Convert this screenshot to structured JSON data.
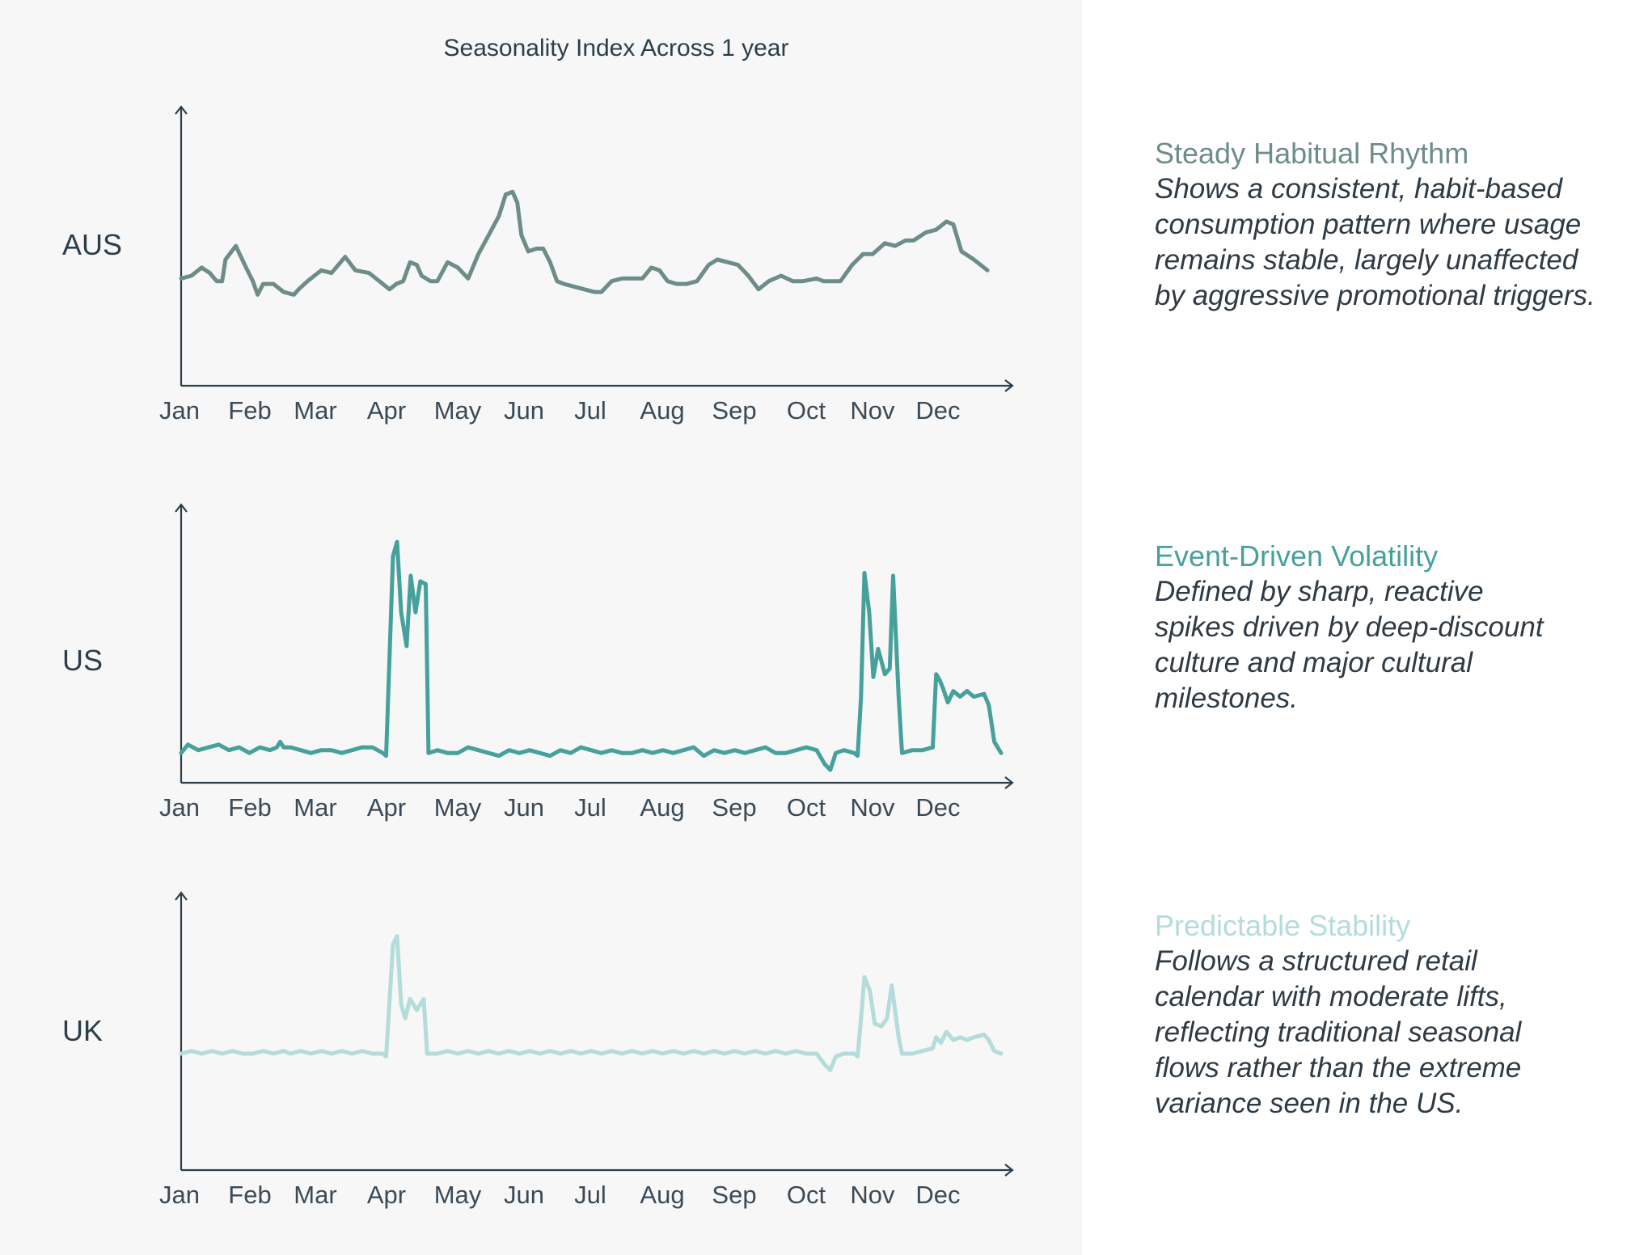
{
  "title": "Seasonality Index Across 1 year",
  "months": [
    "Jan",
    "Feb",
    "Mar",
    "Apr",
    "May",
    "Jun",
    "Jul",
    "Aug",
    "Sep",
    "Oct",
    "Nov",
    "Dec"
  ],
  "colors": {
    "aus": "#6d8d89",
    "us": "#46a09c",
    "uk": "#b3dcda",
    "axis": "#2c3e4a"
  },
  "chart_data": [
    {
      "type": "line",
      "label": "AUS",
      "xlabel": "",
      "ylabel": "",
      "x_range": [
        0,
        12
      ],
      "ylim": [
        0,
        100
      ],
      "points": [
        [
          0,
          39
        ],
        [
          0.15,
          40
        ],
        [
          0.3,
          43
        ],
        [
          0.42,
          41
        ],
        [
          0.52,
          38
        ],
        [
          0.6,
          38
        ],
        [
          0.65,
          46
        ],
        [
          0.8,
          51
        ],
        [
          0.95,
          43
        ],
        [
          1.05,
          38
        ],
        [
          1.12,
          33
        ],
        [
          1.2,
          37
        ],
        [
          1.35,
          37
        ],
        [
          1.5,
          34
        ],
        [
          1.65,
          33
        ],
        [
          1.72,
          35
        ],
        [
          1.85,
          38
        ],
        [
          2.05,
          42
        ],
        [
          2.2,
          41
        ],
        [
          2.3,
          44
        ],
        [
          2.4,
          47
        ],
        [
          2.55,
          42
        ],
        [
          2.75,
          41
        ],
        [
          2.9,
          38
        ],
        [
          3.05,
          35
        ],
        [
          3.15,
          37
        ],
        [
          3.25,
          38
        ],
        [
          3.35,
          45
        ],
        [
          3.45,
          44
        ],
        [
          3.52,
          40
        ],
        [
          3.65,
          38
        ],
        [
          3.75,
          38
        ],
        [
          3.9,
          45
        ],
        [
          4.05,
          43
        ],
        [
          4.2,
          39
        ],
        [
          4.35,
          48
        ],
        [
          4.5,
          55
        ],
        [
          4.65,
          62
        ],
        [
          4.75,
          70
        ],
        [
          4.85,
          71
        ],
        [
          4.92,
          67
        ],
        [
          4.98,
          55
        ],
        [
          5.08,
          49
        ],
        [
          5.2,
          50
        ],
        [
          5.3,
          50
        ],
        [
          5.4,
          45
        ],
        [
          5.5,
          38
        ],
        [
          5.6,
          37
        ],
        [
          5.75,
          36
        ],
        [
          5.9,
          35
        ],
        [
          6.05,
          34
        ],
        [
          6.15,
          34
        ],
        [
          6.3,
          38
        ],
        [
          6.45,
          39
        ],
        [
          6.6,
          39
        ],
        [
          6.75,
          39
        ],
        [
          6.88,
          43
        ],
        [
          7.0,
          42
        ],
        [
          7.12,
          38
        ],
        [
          7.25,
          37
        ],
        [
          7.4,
          37
        ],
        [
          7.55,
          38
        ],
        [
          7.72,
          44
        ],
        [
          7.85,
          46
        ],
        [
          8.0,
          45
        ],
        [
          8.15,
          44
        ],
        [
          8.3,
          40
        ],
        [
          8.45,
          35
        ],
        [
          8.6,
          38
        ],
        [
          8.78,
          40
        ],
        [
          8.95,
          38
        ],
        [
          9.1,
          38
        ],
        [
          9.3,
          39
        ],
        [
          9.4,
          38
        ],
        [
          9.5,
          38
        ],
        [
          9.65,
          38
        ],
        [
          9.82,
          44
        ],
        [
          9.98,
          48
        ],
        [
          10.12,
          48
        ],
        [
          10.3,
          52
        ],
        [
          10.45,
          51
        ],
        [
          10.6,
          53
        ],
        [
          10.72,
          53
        ],
        [
          10.9,
          56
        ],
        [
          11.05,
          57
        ],
        [
          11.2,
          60
        ],
        [
          11.3,
          59
        ],
        [
          11.42,
          49
        ],
        [
          11.6,
          46
        ],
        [
          11.8,
          42
        ]
      ]
    },
    {
      "type": "line",
      "label": "US",
      "xlabel": "",
      "ylabel": "",
      "x_range": [
        0,
        12
      ],
      "ylim": [
        0,
        100
      ],
      "points": [
        [
          0,
          10
        ],
        [
          0.1,
          13
        ],
        [
          0.25,
          11
        ],
        [
          0.4,
          12
        ],
        [
          0.55,
          13
        ],
        [
          0.7,
          11
        ],
        [
          0.85,
          12
        ],
        [
          1.0,
          10
        ],
        [
          1.15,
          12
        ],
        [
          1.3,
          11
        ],
        [
          1.4,
          12
        ],
        [
          1.45,
          14
        ],
        [
          1.5,
          12
        ],
        [
          1.6,
          12
        ],
        [
          1.75,
          11
        ],
        [
          1.9,
          10
        ],
        [
          2.05,
          11
        ],
        [
          2.2,
          11
        ],
        [
          2.35,
          10
        ],
        [
          2.5,
          11
        ],
        [
          2.65,
          12
        ],
        [
          2.8,
          12
        ],
        [
          2.95,
          10
        ],
        [
          3.0,
          9
        ],
        [
          3.1,
          80
        ],
        [
          3.16,
          85
        ],
        [
          3.22,
          60
        ],
        [
          3.3,
          48
        ],
        [
          3.36,
          73
        ],
        [
          3.43,
          60
        ],
        [
          3.5,
          71
        ],
        [
          3.58,
          70
        ],
        [
          3.62,
          10
        ],
        [
          3.75,
          11
        ],
        [
          3.9,
          10
        ],
        [
          4.05,
          10
        ],
        [
          4.2,
          12
        ],
        [
          4.35,
          11
        ],
        [
          4.5,
          10
        ],
        [
          4.65,
          9
        ],
        [
          4.8,
          11
        ],
        [
          4.95,
          10
        ],
        [
          5.1,
          11
        ],
        [
          5.25,
          10
        ],
        [
          5.4,
          9
        ],
        [
          5.55,
          11
        ],
        [
          5.7,
          10
        ],
        [
          5.85,
          12
        ],
        [
          6.0,
          11
        ],
        [
          6.15,
          10
        ],
        [
          6.3,
          11
        ],
        [
          6.45,
          10
        ],
        [
          6.6,
          10
        ],
        [
          6.75,
          11
        ],
        [
          6.9,
          10
        ],
        [
          7.05,
          11
        ],
        [
          7.2,
          10
        ],
        [
          7.35,
          11
        ],
        [
          7.5,
          12
        ],
        [
          7.65,
          9
        ],
        [
          7.8,
          11
        ],
        [
          7.95,
          10
        ],
        [
          8.1,
          11
        ],
        [
          8.25,
          10
        ],
        [
          8.4,
          11
        ],
        [
          8.55,
          12
        ],
        [
          8.7,
          10
        ],
        [
          8.85,
          10
        ],
        [
          9.0,
          11
        ],
        [
          9.15,
          12
        ],
        [
          9.3,
          11
        ],
        [
          9.42,
          6
        ],
        [
          9.5,
          4
        ],
        [
          9.58,
          10
        ],
        [
          9.7,
          11
        ],
        [
          9.85,
          10
        ],
        [
          9.9,
          9
        ],
        [
          9.95,
          30
        ],
        [
          10.0,
          74
        ],
        [
          10.07,
          60
        ],
        [
          10.13,
          37
        ],
        [
          10.2,
          47
        ],
        [
          10.3,
          38
        ],
        [
          10.37,
          40
        ],
        [
          10.42,
          73
        ],
        [
          10.5,
          30
        ],
        [
          10.55,
          10
        ],
        [
          10.7,
          11
        ],
        [
          10.85,
          11
        ],
        [
          11.0,
          12
        ],
        [
          11.05,
          38
        ],
        [
          11.1,
          36
        ],
        [
          11.15,
          33
        ],
        [
          11.22,
          28
        ],
        [
          11.3,
          32
        ],
        [
          11.4,
          30
        ],
        [
          11.5,
          32
        ],
        [
          11.6,
          30
        ],
        [
          11.75,
          31
        ],
        [
          11.82,
          27
        ],
        [
          11.9,
          14
        ],
        [
          12.0,
          10
        ]
      ]
    },
    {
      "type": "line",
      "label": "UK",
      "xlabel": "",
      "ylabel": "",
      "x_range": [
        0,
        12
      ],
      "ylim": [
        0,
        100
      ],
      "points": [
        [
          0,
          42
        ],
        [
          0.15,
          43
        ],
        [
          0.3,
          42
        ],
        [
          0.45,
          43
        ],
        [
          0.6,
          42
        ],
        [
          0.75,
          43
        ],
        [
          0.9,
          42
        ],
        [
          1.05,
          42
        ],
        [
          1.2,
          43
        ],
        [
          1.35,
          42
        ],
        [
          1.5,
          43
        ],
        [
          1.6,
          42
        ],
        [
          1.75,
          43
        ],
        [
          1.9,
          42
        ],
        [
          2.05,
          43
        ],
        [
          2.2,
          42
        ],
        [
          2.35,
          43
        ],
        [
          2.5,
          42
        ],
        [
          2.65,
          43
        ],
        [
          2.8,
          42
        ],
        [
          2.95,
          42
        ],
        [
          3.0,
          41
        ],
        [
          3.1,
          82
        ],
        [
          3.16,
          85
        ],
        [
          3.22,
          60
        ],
        [
          3.28,
          55
        ],
        [
          3.35,
          62
        ],
        [
          3.45,
          58
        ],
        [
          3.55,
          62
        ],
        [
          3.6,
          42
        ],
        [
          3.75,
          42
        ],
        [
          3.9,
          43
        ],
        [
          4.05,
          42
        ],
        [
          4.2,
          43
        ],
        [
          4.35,
          42
        ],
        [
          4.5,
          43
        ],
        [
          4.65,
          42
        ],
        [
          4.8,
          43
        ],
        [
          4.95,
          42
        ],
        [
          5.1,
          43
        ],
        [
          5.25,
          42
        ],
        [
          5.4,
          43
        ],
        [
          5.55,
          42
        ],
        [
          5.7,
          43
        ],
        [
          5.85,
          42
        ],
        [
          6.0,
          43
        ],
        [
          6.15,
          42
        ],
        [
          6.3,
          43
        ],
        [
          6.45,
          42
        ],
        [
          6.6,
          43
        ],
        [
          6.75,
          42
        ],
        [
          6.9,
          43
        ],
        [
          7.05,
          42
        ],
        [
          7.2,
          43
        ],
        [
          7.35,
          42
        ],
        [
          7.5,
          43
        ],
        [
          7.65,
          42
        ],
        [
          7.8,
          43
        ],
        [
          7.95,
          42
        ],
        [
          8.1,
          43
        ],
        [
          8.25,
          42
        ],
        [
          8.4,
          43
        ],
        [
          8.55,
          42
        ],
        [
          8.7,
          43
        ],
        [
          8.85,
          42
        ],
        [
          9.0,
          43
        ],
        [
          9.15,
          42
        ],
        [
          9.3,
          42
        ],
        [
          9.42,
          38
        ],
        [
          9.5,
          36
        ],
        [
          9.58,
          41
        ],
        [
          9.7,
          42
        ],
        [
          9.85,
          42
        ],
        [
          9.9,
          41
        ],
        [
          9.95,
          55
        ],
        [
          10.0,
          70
        ],
        [
          10.08,
          65
        ],
        [
          10.15,
          53
        ],
        [
          10.25,
          52
        ],
        [
          10.33,
          55
        ],
        [
          10.4,
          67
        ],
        [
          10.5,
          48
        ],
        [
          10.55,
          42
        ],
        [
          10.7,
          42
        ],
        [
          10.85,
          43
        ],
        [
          11.0,
          44
        ],
        [
          11.05,
          48
        ],
        [
          11.12,
          46
        ],
        [
          11.2,
          50
        ],
        [
          11.3,
          47
        ],
        [
          11.4,
          48
        ],
        [
          11.5,
          47
        ],
        [
          11.6,
          48
        ],
        [
          11.75,
          49
        ],
        [
          11.82,
          47
        ],
        [
          11.9,
          43
        ],
        [
          12.0,
          42
        ]
      ]
    }
  ],
  "descriptions": [
    {
      "title": "Steady Habitual Rhythm",
      "body": "Shows a consistent, habit-based\nconsumption pattern where usage\nremains stable, largely unaffected\nby aggressive promotional triggers."
    },
    {
      "title": "Event-Driven Volatility",
      "body": "Defined by sharp, reactive\nspikes driven by deep-discount\nculture and major cultural\nmilestones."
    },
    {
      "title": "Predictable Stability",
      "body": "Follows a structured retail\ncalendar with moderate lifts,\nreflecting traditional seasonal\nflows rather than the extreme\nvariance seen in the US."
    }
  ]
}
